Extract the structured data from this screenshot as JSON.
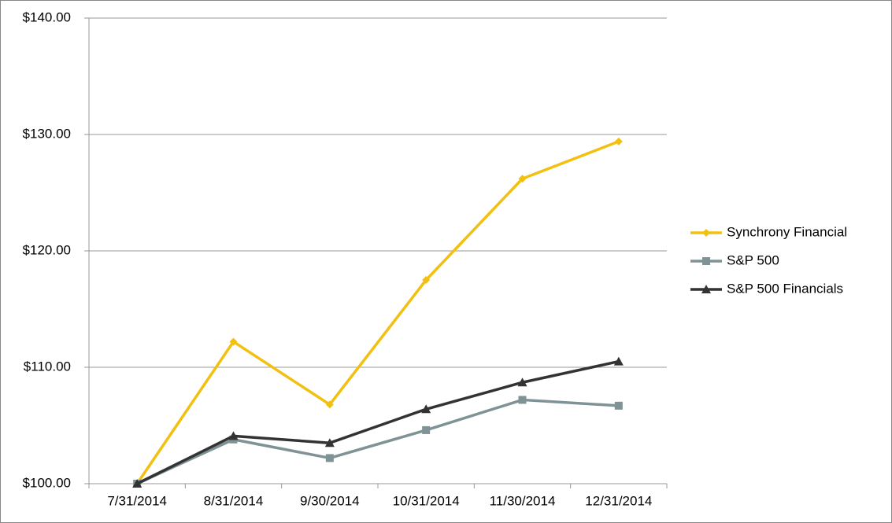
{
  "chart_data": {
    "type": "line",
    "categories": [
      "7/31/2014",
      "8/31/2014",
      "9/30/2014",
      "10/31/2014",
      "11/30/2014",
      "12/31/2014"
    ],
    "series": [
      {
        "name": "Synchrony Financial",
        "color": "#f2c010",
        "marker": "diamond",
        "values": [
          100,
          112.2,
          106.8,
          117.5,
          126.2,
          129.4
        ]
      },
      {
        "name": "S&P 500",
        "color": "#7f9396",
        "marker": "square",
        "values": [
          100,
          103.8,
          102.2,
          104.6,
          107.2,
          106.7
        ]
      },
      {
        "name": "S&P 500 Financials",
        "color": "#333333",
        "marker": "triangle",
        "values": [
          100,
          104.1,
          103.5,
          106.4,
          108.7,
          110.5
        ]
      }
    ],
    "ylim": [
      100,
      140
    ],
    "yticks": [
      {
        "value": 100,
        "label": "$100.00"
      },
      {
        "value": 110,
        "label": "$110.00"
      },
      {
        "value": 120,
        "label": "$120.00"
      },
      {
        "value": 130,
        "label": "$130.00"
      },
      {
        "value": 140,
        "label": "$140.00"
      }
    ],
    "grid": true,
    "legend": "right"
  }
}
